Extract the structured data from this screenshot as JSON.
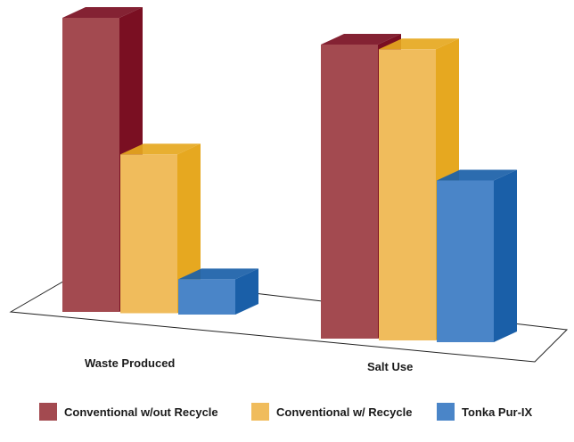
{
  "chart_data": {
    "type": "bar",
    "style": "3d-clustered-column",
    "categories": [
      "Waste Produced",
      "Salt Use"
    ],
    "series": [
      {
        "name": "Conventional w/out Recycle",
        "values": [
          100,
          100
        ],
        "color": "#a34a50",
        "side_color": "#7a0f22"
      },
      {
        "name": "Conventional w/ Recycle",
        "values": [
          54,
          99
        ],
        "color": "#f0bc5c",
        "side_color": "#e6a820"
      },
      {
        "name": "Tonka Pur-IX",
        "values": [
          12,
          55
        ],
        "color": "#4a85c8",
        "side_color": "#1a5fa8"
      }
    ],
    "y_axis_shown": false,
    "grid": false,
    "legend_position": "bottom"
  }
}
